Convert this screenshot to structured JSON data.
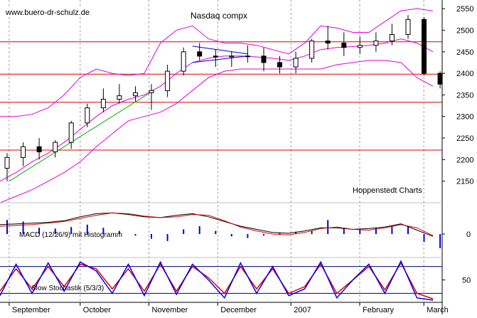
{
  "source_label": "www.buero-dr-schulz.de",
  "watermark": "Hoppenstedt Charts",
  "colors": {
    "up": "#ffffff",
    "down": "#000000",
    "bollinger": "#e000e0",
    "hline": "#dd0000",
    "trend_green": "#00aa00",
    "trend_blue": "#0000cc",
    "macd": "#000000",
    "signal": "#dd0000",
    "histogram": "#0000cc",
    "stoch_k": "#0000ff",
    "stoch_d": "#dd0000",
    "grid": "#a0a0a0"
  },
  "chart_data": [
    {
      "type": "candlestick",
      "title": "Nasdaq compx",
      "ylim": [
        2100,
        2570
      ],
      "yticks": [
        2150,
        2200,
        2250,
        2300,
        2350,
        2400,
        2450,
        2500,
        2550
      ],
      "xtick_labels": [
        "September",
        "October",
        "November",
        "December",
        "2007",
        "February",
        "March"
      ],
      "grid": "vertical dashed at month starts",
      "horizontal_lines": [
        2222,
        2333,
        2398,
        2473
      ],
      "trendlines": [
        {
          "color": "green",
          "from": {
            "date": "2006-09-01",
            "value": 2150
          },
          "to": {
            "date": "2006-11-03",
            "value": 2360
          }
        },
        {
          "color": "blue",
          "from": {
            "date": "2006-11-20",
            "value": 2425
          },
          "to": {
            "date": "2006-12-14",
            "value": 2440
          }
        },
        {
          "color": "blue",
          "from": {
            "date": "2006-11-20",
            "value": 2463
          },
          "to": {
            "date": "2006-12-14",
            "value": 2445
          }
        }
      ],
      "dates": [
        "2006-08-28",
        "2006-09-04",
        "2006-09-11",
        "2006-09-18",
        "2006-09-25",
        "2006-10-02",
        "2006-10-09",
        "2006-10-16",
        "2006-10-23",
        "2006-10-30",
        "2006-11-06",
        "2006-11-13",
        "2006-11-20",
        "2006-11-27",
        "2006-12-04",
        "2006-12-11",
        "2006-12-18",
        "2006-12-25",
        "2007-01-01",
        "2007-01-08",
        "2007-01-15",
        "2007-01-22",
        "2007-01-29",
        "2007-02-05",
        "2007-02-12",
        "2007-02-19",
        "2007-02-26",
        "2007-03-05"
      ],
      "series": [
        {
          "name": "open",
          "values": [
            2180,
            2205,
            2230,
            2218,
            2240,
            2285,
            2320,
            2340,
            2348,
            2355,
            2360,
            2405,
            2450,
            2440,
            2438,
            2440,
            2440,
            2425,
            2415,
            2435,
            2475,
            2470,
            2460,
            2465,
            2475,
            2490,
            2525,
            2400
          ]
        },
        {
          "name": "high",
          "values": [
            2215,
            2240,
            2250,
            2245,
            2290,
            2330,
            2365,
            2375,
            2370,
            2375,
            2420,
            2460,
            2470,
            2455,
            2450,
            2465,
            2460,
            2440,
            2450,
            2480,
            2510,
            2495,
            2485,
            2495,
            2515,
            2535,
            2530,
            2405
          ]
        },
        {
          "name": "low",
          "values": [
            2150,
            2185,
            2200,
            2205,
            2225,
            2275,
            2310,
            2330,
            2335,
            2315,
            2345,
            2395,
            2430,
            2415,
            2415,
            2425,
            2405,
            2400,
            2400,
            2425,
            2455,
            2440,
            2445,
            2450,
            2465,
            2480,
            2395,
            2365
          ]
        },
        {
          "name": "close",
          "values": [
            2205,
            2230,
            2218,
            2240,
            2285,
            2320,
            2340,
            2348,
            2355,
            2360,
            2405,
            2450,
            2440,
            2438,
            2440,
            2440,
            2425,
            2415,
            2435,
            2475,
            2470,
            2460,
            2465,
            2475,
            2490,
            2525,
            2400,
            2375
          ]
        },
        {
          "name": "bollinger_upper",
          "values": [
            2300,
            2300,
            2305,
            2320,
            2350,
            2390,
            2410,
            2400,
            2395,
            2400,
            2470,
            2500,
            2510,
            2480,
            2470,
            2470,
            2465,
            2455,
            2445,
            2470,
            2510,
            2505,
            2495,
            2495,
            2520,
            2545,
            2550,
            2545
          ]
        },
        {
          "name": "bollinger_middle",
          "values": [
            2150,
            2170,
            2195,
            2215,
            2240,
            2270,
            2300,
            2325,
            2340,
            2350,
            2370,
            2400,
            2425,
            2435,
            2440,
            2440,
            2438,
            2435,
            2430,
            2440,
            2455,
            2460,
            2462,
            2465,
            2470,
            2480,
            2470,
            2450
          ]
        },
        {
          "name": "bollinger_lower",
          "values": [
            2100,
            2115,
            2130,
            2150,
            2170,
            2195,
            2230,
            2260,
            2290,
            2300,
            2310,
            2330,
            2360,
            2390,
            2405,
            2410,
            2410,
            2410,
            2410,
            2410,
            2410,
            2420,
            2425,
            2430,
            2430,
            2425,
            2390,
            2370
          ]
        }
      ]
    },
    {
      "type": "line",
      "title": "MACD (12/26/9) mit Histogramm",
      "ylim": [
        -30,
        40
      ],
      "yticks": [
        0
      ],
      "dates": [
        "2006-08-28",
        "2006-09-04",
        "2006-09-11",
        "2006-09-18",
        "2006-09-25",
        "2006-10-02",
        "2006-10-09",
        "2006-10-16",
        "2006-10-23",
        "2006-10-30",
        "2006-11-06",
        "2006-11-13",
        "2006-11-20",
        "2006-11-27",
        "2006-12-04",
        "2006-12-11",
        "2006-12-18",
        "2006-12-25",
        "2007-01-01",
        "2007-01-08",
        "2007-01-15",
        "2007-01-22",
        "2007-01-29",
        "2007-02-05",
        "2007-02-12",
        "2007-02-19",
        "2007-02-26",
        "2007-03-05"
      ],
      "series": [
        {
          "name": "macd",
          "values": [
            12,
            13,
            14,
            15,
            17,
            22,
            26,
            27,
            25,
            22,
            21,
            24,
            26,
            22,
            16,
            10,
            6,
            2,
            1,
            4,
            8,
            8,
            6,
            7,
            9,
            13,
            5,
            -3
          ]
        },
        {
          "name": "signal",
          "values": [
            10,
            11,
            12,
            14,
            16,
            20,
            24,
            27,
            26,
            23,
            21,
            22,
            25,
            24,
            17,
            9,
            4,
            0,
            -1,
            2,
            7,
            9,
            6,
            5,
            8,
            12,
            8,
            -2
          ]
        },
        {
          "name": "histogram",
          "values": [
            18,
            16,
            8,
            7,
            9,
            12,
            8,
            4,
            -2,
            -6,
            -9,
            6,
            10,
            4,
            -3,
            -5,
            -2,
            2,
            3,
            4,
            18,
            8,
            6,
            8,
            10,
            9,
            -10,
            -18
          ]
        }
      ]
    },
    {
      "type": "line",
      "title": "Slow Stochastik (5/3/3)",
      "ylim": [
        0,
        100
      ],
      "yticks": [
        50
      ],
      "horizontal_lines": [
        20,
        80
      ],
      "dates": [
        "2006-08-28",
        "2006-09-04",
        "2006-09-11",
        "2006-09-18",
        "2006-09-25",
        "2006-10-02",
        "2006-10-09",
        "2006-10-16",
        "2006-10-23",
        "2006-10-30",
        "2006-11-06",
        "2006-11-13",
        "2006-11-20",
        "2006-11-27",
        "2006-12-04",
        "2006-12-11",
        "2006-12-18",
        "2006-12-25",
        "2007-01-01",
        "2007-01-08",
        "2007-01-15",
        "2007-01-22",
        "2007-01-29",
        "2007-02-05",
        "2007-02-12",
        "2007-02-19",
        "2007-02-26",
        "2007-03-05"
      ],
      "series": [
        {
          "name": "%K",
          "values": [
            15,
            85,
            20,
            88,
            25,
            90,
            70,
            20,
            85,
            15,
            90,
            18,
            85,
            50,
            10,
            88,
            20,
            80,
            15,
            30,
            90,
            10,
            50,
            85,
            20,
            92,
            10,
            5
          ]
        },
        {
          "name": "%D",
          "values": [
            25,
            75,
            30,
            80,
            35,
            85,
            75,
            30,
            75,
            25,
            85,
            25,
            80,
            55,
            20,
            80,
            30,
            75,
            20,
            35,
            85,
            20,
            50,
            80,
            28,
            88,
            20,
            8
          ]
        }
      ]
    }
  ]
}
